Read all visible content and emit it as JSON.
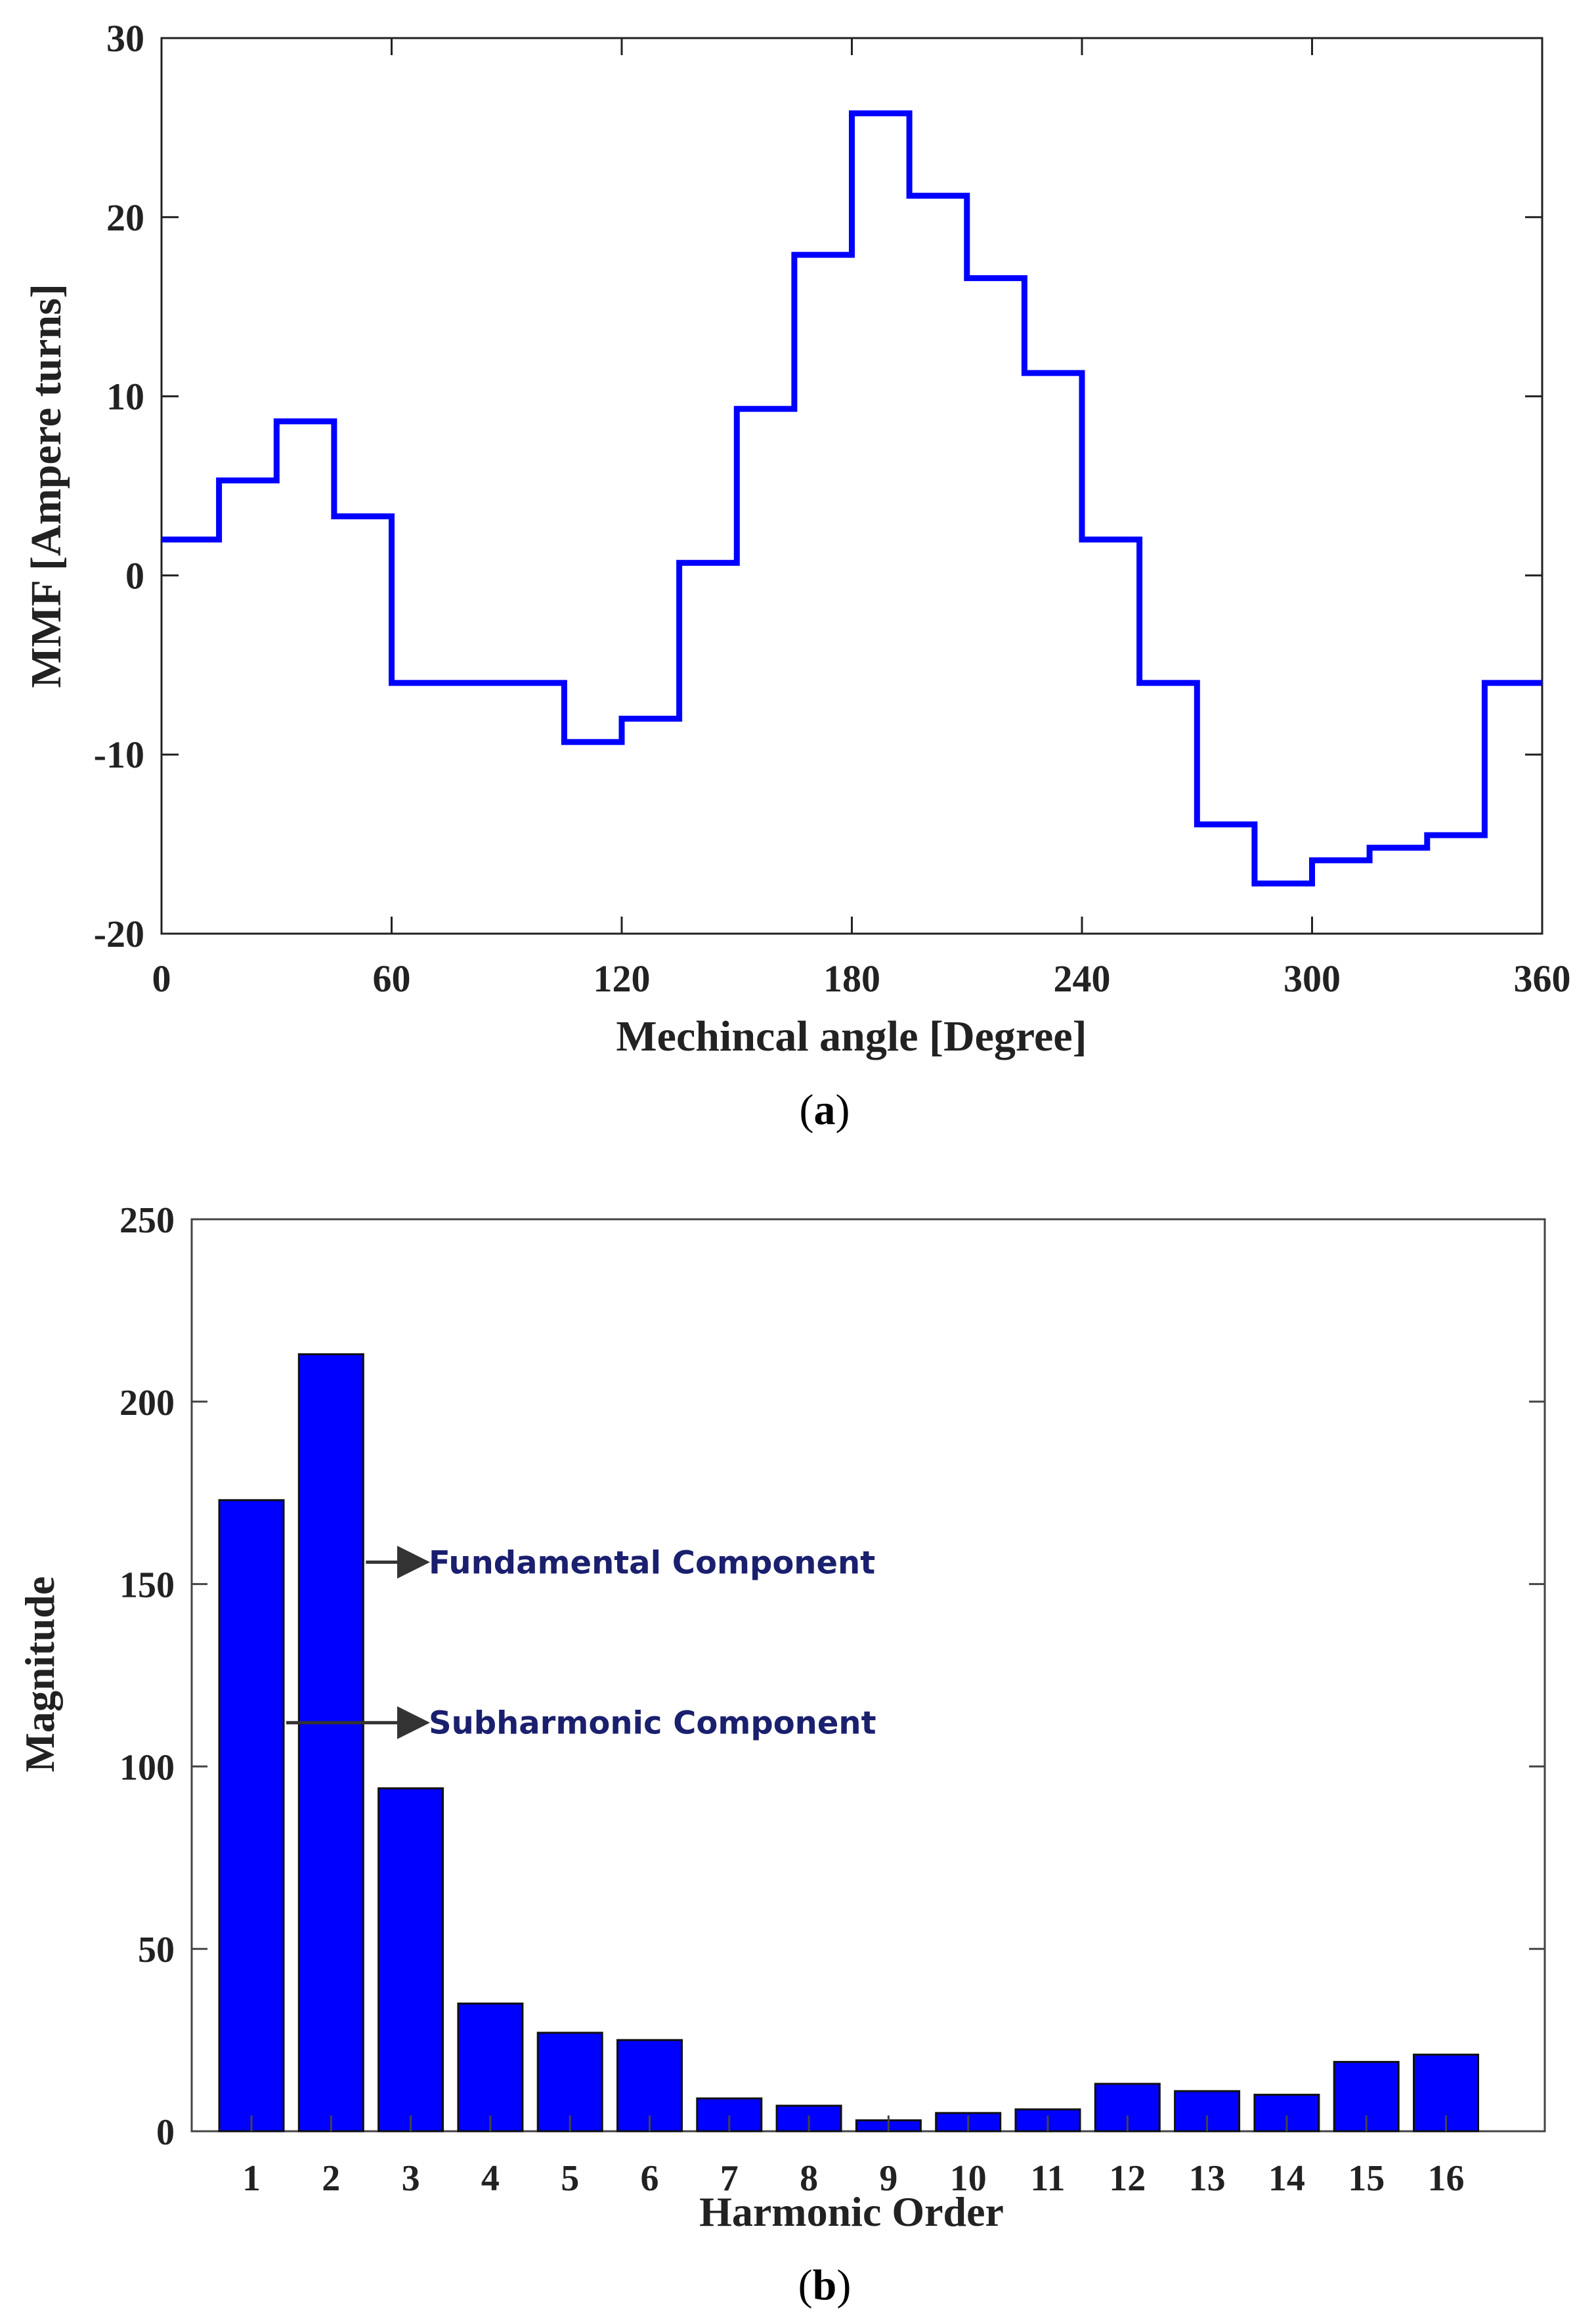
{
  "chart_data": [
    {
      "type": "line",
      "step": true,
      "xlabel": "Mechincal angle [Degree]",
      "ylabel": "MMF [Ampere turns]",
      "xlim": [
        0,
        360
      ],
      "ylim": [
        -20,
        30
      ],
      "x_ticks": [
        0,
        60,
        120,
        180,
        240,
        300,
        360
      ],
      "y_ticks": [
        -20,
        -10,
        0,
        10,
        20,
        30
      ],
      "caption_prefix": "(",
      "caption_letter": "a",
      "caption_suffix": ")",
      "line_color": "#0000ff",
      "grid": false,
      "series": [
        {
          "x": [
            0,
            15,
            15,
            30,
            30,
            45,
            45,
            60,
            60,
            105,
            105,
            120,
            120,
            135,
            135,
            150,
            150,
            165,
            165,
            180,
            180,
            195,
            195,
            210,
            210,
            225,
            225,
            240,
            240,
            255,
            255,
            270,
            270,
            285,
            285,
            300,
            300,
            315,
            315,
            330,
            330,
            345,
            345,
            360
          ],
          "y": [
            2,
            2,
            5.3,
            5.3,
            8.6,
            8.6,
            3.3,
            3.3,
            -6,
            -6,
            -9.3,
            -9.3,
            -8,
            -8,
            0.7,
            0.7,
            9.3,
            9.3,
            17.9,
            17.9,
            25.8,
            25.8,
            21.2,
            21.2,
            16.6,
            16.6,
            11.3,
            11.3,
            2,
            2,
            -6,
            -6,
            -13.9,
            -13.9,
            -17.2,
            -17.2,
            -15.9,
            -15.9,
            -15.2,
            -15.2,
            -14.5,
            -14.5,
            -6,
            -6
          ]
        }
      ]
    },
    {
      "type": "bar",
      "xlabel": "Harmonic Order",
      "ylabel": "Magnitude",
      "ylim": [
        0,
        250
      ],
      "y_ticks": [
        0,
        50,
        100,
        150,
        200,
        250
      ],
      "categories": [
        "1",
        "2",
        "3",
        "4",
        "5",
        "6",
        "7",
        "8",
        "9",
        "10",
        "11",
        "12",
        "13",
        "14",
        "15",
        "16"
      ],
      "values": [
        173,
        213,
        94,
        35,
        27,
        25,
        9,
        7,
        3,
        5,
        6,
        13,
        11,
        10,
        19,
        21
      ],
      "bar_color": "#0000ff",
      "grid": false,
      "caption_prefix": "(",
      "caption_letter": "b",
      "caption_suffix": ")",
      "annotations": [
        {
          "text": "Fundamental Component",
          "bar_index": 1,
          "y": 156
        },
        {
          "text": "Subharmonic Component",
          "bar_index": 0,
          "y": 112
        }
      ]
    }
  ]
}
